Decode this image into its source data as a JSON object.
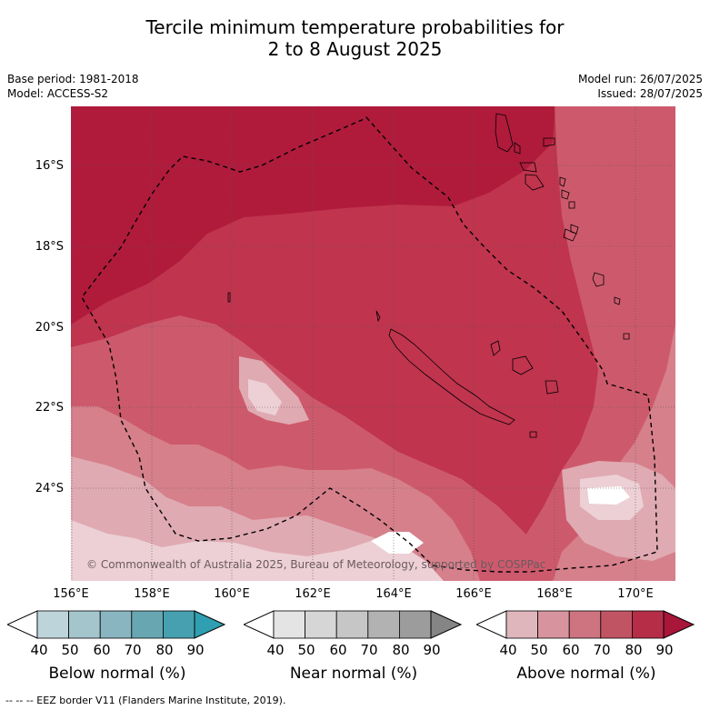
{
  "header": {
    "title_line1": "Tercile minimum temperature probabilities for",
    "title_line2": "2 to 8 August 2025",
    "base_period": "Base period: 1981-2018",
    "model": "Model: ACCESS-S2",
    "model_run": "Model run: 26/07/2025",
    "issued": "Issued: 28/07/2025"
  },
  "map": {
    "lat_labels": [
      "16°S",
      "18°S",
      "20°S",
      "22°S",
      "24°S"
    ],
    "lon_labels": [
      "156°E",
      "158°E",
      "160°E",
      "162°E",
      "164°E",
      "166°E",
      "168°E",
      "170°E"
    ],
    "copyright": "© Commonwealth of Australia 2025, Bureau of Meteorology, supported by COSPPac",
    "colors": {
      "above_90": "#b01b3c",
      "above_80": "#c0344e",
      "above_70": "#cd5a6c",
      "above_60": "#d6808c",
      "above_50": "#e0aab2",
      "above_40": "#ecd0d5",
      "peak": "#ffffff"
    }
  },
  "legend": {
    "tick_labels": [
      "40",
      "50",
      "60",
      "70",
      "80",
      "90"
    ],
    "below": {
      "title": "Below normal (%)",
      "colors": [
        "#ffffff",
        "#bdd4da",
        "#a4c5cc",
        "#88b5c0",
        "#68a6b2",
        "#46a0b0",
        "#2f9fb1"
      ]
    },
    "near": {
      "title": "Near normal (%)",
      "colors": [
        "#ffffff",
        "#e4e4e4",
        "#d6d6d6",
        "#c6c6c6",
        "#b2b2b2",
        "#9c9c9c",
        "#858585"
      ]
    },
    "above": {
      "title": "Above normal (%)",
      "colors": [
        "#ffffff",
        "#e0b6bd",
        "#d8949e",
        "#cd7480",
        "#c15463",
        "#b62d48",
        "#a8163a"
      ]
    }
  },
  "footer": {
    "eez_note": "--  --  -- EEZ border V11 (Flanders Marine Institute, 2019)."
  }
}
